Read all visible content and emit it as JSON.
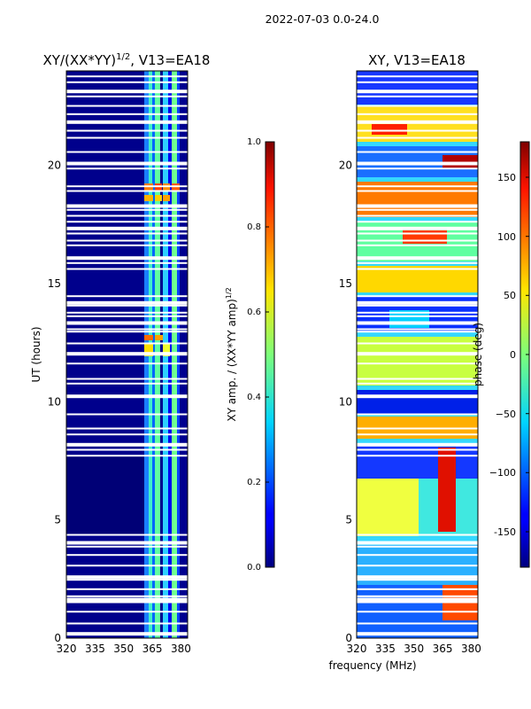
{
  "figure": {
    "suptitle": "2022-07-03 0.0-24.0",
    "xlabel": "frequency (MHz)",
    "ylabel": "UT (hours)"
  },
  "chart_data": [
    {
      "type": "heatmap",
      "title": "XY/(XX*YY)^1/2, V13=EA18",
      "title_main": "XY/(XX*YY)",
      "title_exp": "1/2",
      "title_rest": ", V13=EA18",
      "x_ticks": [
        "320",
        "335",
        "350",
        "365",
        "380"
      ],
      "x_tick_values": [
        320,
        335,
        350,
        365,
        380
      ],
      "y_ticks": [
        "0",
        "5",
        "10",
        "15",
        "20"
      ],
      "y_tick_values": [
        0,
        5,
        10,
        15,
        20
      ],
      "xlim": [
        320,
        383.5
      ],
      "ylim": [
        0,
        24
      ],
      "colorbar": {
        "label_main": "XY amp. / (XX*YY amp)",
        "label_exp": "1/2",
        "ticks": [
          "0.0",
          "0.2",
          "0.4",
          "0.6",
          "0.8",
          "1.0"
        ],
        "tick_values": [
          0.0,
          0.2,
          0.4,
          0.6,
          0.8,
          1.0
        ],
        "range": [
          0.0,
          1.0
        ]
      },
      "gaps_ut_hours": [
        0.2,
        0.6,
        1.1,
        1.5,
        1.65,
        1.75,
        2.05,
        2.45,
        2.6,
        3.05,
        3.5,
        3.85,
        4.05,
        4.35,
        7.7,
        7.95,
        8.2,
        8.6,
        8.85,
        9.45,
        10.25,
        10.75,
        10.95,
        11.6,
        12.05,
        12.45,
        12.95,
        13.05,
        13.35,
        13.6,
        13.75,
        14.05,
        14.2,
        14.45,
        15.6,
        15.85,
        16.1,
        16.6,
        16.8,
        17.1,
        17.35,
        17.6,
        17.85,
        18.1,
        18.3,
        18.9,
        19.1,
        19.85,
        20.1,
        20.55,
        21.15,
        21.45,
        21.85,
        22.15,
        22.5,
        22.9,
        23.15,
        23.5,
        23.75
      ]
    },
    {
      "type": "heatmap",
      "title": "XY, V13=EA18",
      "x_ticks": [
        "320",
        "335",
        "350",
        "365",
        "380"
      ],
      "x_tick_values": [
        320,
        335,
        350,
        365,
        380
      ],
      "y_ticks": [
        "0",
        "5",
        "10",
        "15",
        "20"
      ],
      "y_tick_values": [
        0,
        5,
        10,
        15,
        20
      ],
      "xlim": [
        320,
        383.5
      ],
      "ylim": [
        0,
        24
      ],
      "colorbar": {
        "label": "phase (deg)",
        "ticks": [
          "-150",
          "−100",
          "−50",
          "0",
          "50",
          "100",
          "150"
        ],
        "tick_values": [
          -150,
          -100,
          -50,
          0,
          50,
          100,
          150
        ],
        "range": [
          -180,
          180
        ]
      }
    }
  ]
}
